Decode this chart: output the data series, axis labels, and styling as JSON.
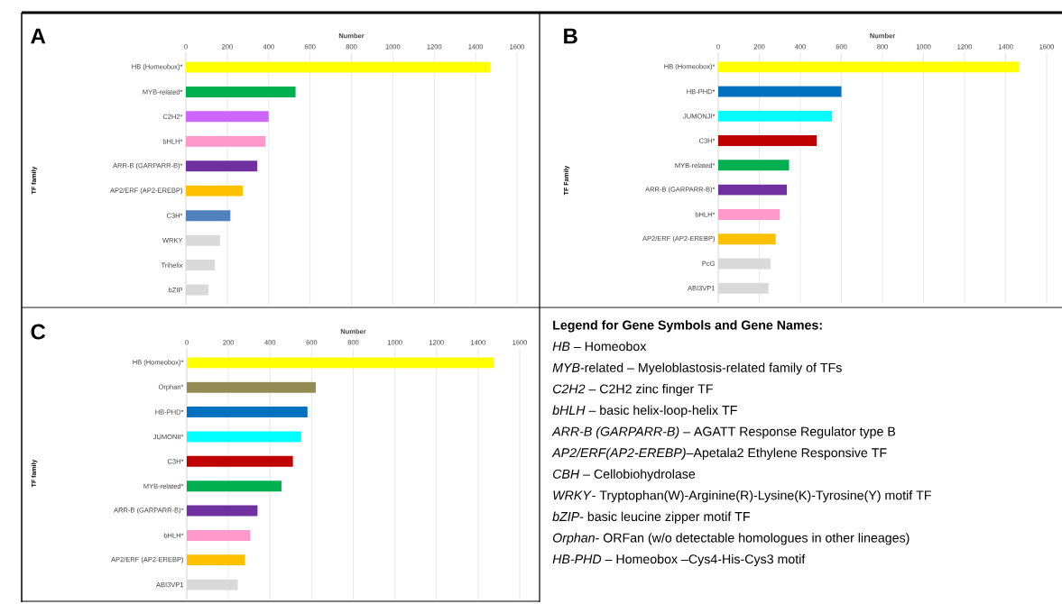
{
  "chart_data": [
    {
      "type": "bar",
      "orientation": "horizontal",
      "title": "A",
      "xlabel": "Number",
      "ylabel": "TF family",
      "grid": "x",
      "xlim": [
        0,
        1600
      ],
      "xticks": [
        0,
        200,
        400,
        600,
        800,
        1000,
        1200,
        1400,
        1600
      ],
      "categories": [
        "HB (Homeobox)*",
        "MYB-related*",
        "C2H2*",
        "bHLH*",
        "ARR-B (GARPARR-B)*",
        "AP2/ERF (AP2-EREBP)",
        "C3H*",
        "WRKY",
        "Trihelix",
        "bZIP"
      ],
      "values": [
        1470,
        530,
        400,
        385,
        345,
        275,
        215,
        165,
        140,
        110
      ],
      "colors": [
        "#ffff00",
        "#00b050",
        "#cc66ff",
        "#ff99cc",
        "#7030a0",
        "#ffc000",
        "#4f81bd",
        "#d9d9d9",
        "#d9d9d9",
        "#d9d9d9"
      ]
    },
    {
      "type": "bar",
      "orientation": "horizontal",
      "title": "B",
      "xlabel": "Number",
      "ylabel": "TF Family",
      "grid": "x",
      "xlim": [
        0,
        1600
      ],
      "xticks": [
        0,
        200,
        400,
        600,
        800,
        1000,
        1200,
        1400,
        1600
      ],
      "categories": [
        "HB (Homeobox)*",
        "HB-PHD*",
        "JUMONJI*",
        "C3H*",
        "MYB-related*",
        "ARR-B (GARPARR-B)*",
        "bHLH*",
        "AP2/ERF (AP2-EREBP)",
        "PcG",
        "ABI3VP1"
      ],
      "values": [
        1465,
        600,
        555,
        480,
        345,
        335,
        300,
        280,
        255,
        245
      ],
      "colors": [
        "#ffff00",
        "#0070c0",
        "#00ffff",
        "#c00000",
        "#00b050",
        "#7030a0",
        "#ff99cc",
        "#ffc000",
        "#d9d9d9",
        "#d9d9d9"
      ]
    },
    {
      "type": "bar",
      "orientation": "horizontal",
      "title": "C",
      "xlabel": "Number",
      "ylabel": "TF family",
      "grid": "x",
      "xlim": [
        0,
        1600
      ],
      "xticks": [
        0,
        200,
        400,
        600,
        800,
        1000,
        1200,
        1400,
        1600
      ],
      "categories": [
        "HB (Homeobox)*",
        "Orphan*",
        "HB-PHD*",
        "JUMONII*",
        "C3H*",
        "MYB-related*",
        "ARR-B (GARPARR-B)*",
        "bHLH*",
        "AP2/ERF (AP2-EREBP)",
        "ABI3VP1"
      ],
      "values": [
        1475,
        620,
        580,
        550,
        510,
        455,
        340,
        305,
        280,
        245
      ],
      "colors": [
        "#ffff00",
        "#948a54",
        "#0070c0",
        "#00ffff",
        "#c00000",
        "#00b050",
        "#7030a0",
        "#ff99cc",
        "#ffc000",
        "#d9d9d9"
      ]
    },
    {
      "type": "other",
      "title": "Legend for Gene Symbols and Gene Names:",
      "annotations": [
        "*HB* – Homeobox",
        "*MYB*-related – Myeloblastosis-related family of TFs",
        "*C2H2* – C2H2 zinc finger TF",
        "*bHLH* – basic helix-loop-helix TF",
        "*ARR-B (GARPARR-B)* – AGATT Response Regulator type B",
        "*AP2/ERF(AP2-EREBP)*–Apetala2 Ethylene Responsive TF",
        "*CBH* – Cellobiohydrolase",
        "*WRKY*- Tryptophan(W)-Arginine(R)-Lysine(K)-Tyrosine(Y) motif TF",
        "*bZIP*- basic leucine zipper motif TF",
        "*Orphan*- ORFan (w/o detectable homologues in other lineages)",
        "*HB-PHD* – Homeobox –Cys4-His-Cys3 motif"
      ]
    }
  ]
}
